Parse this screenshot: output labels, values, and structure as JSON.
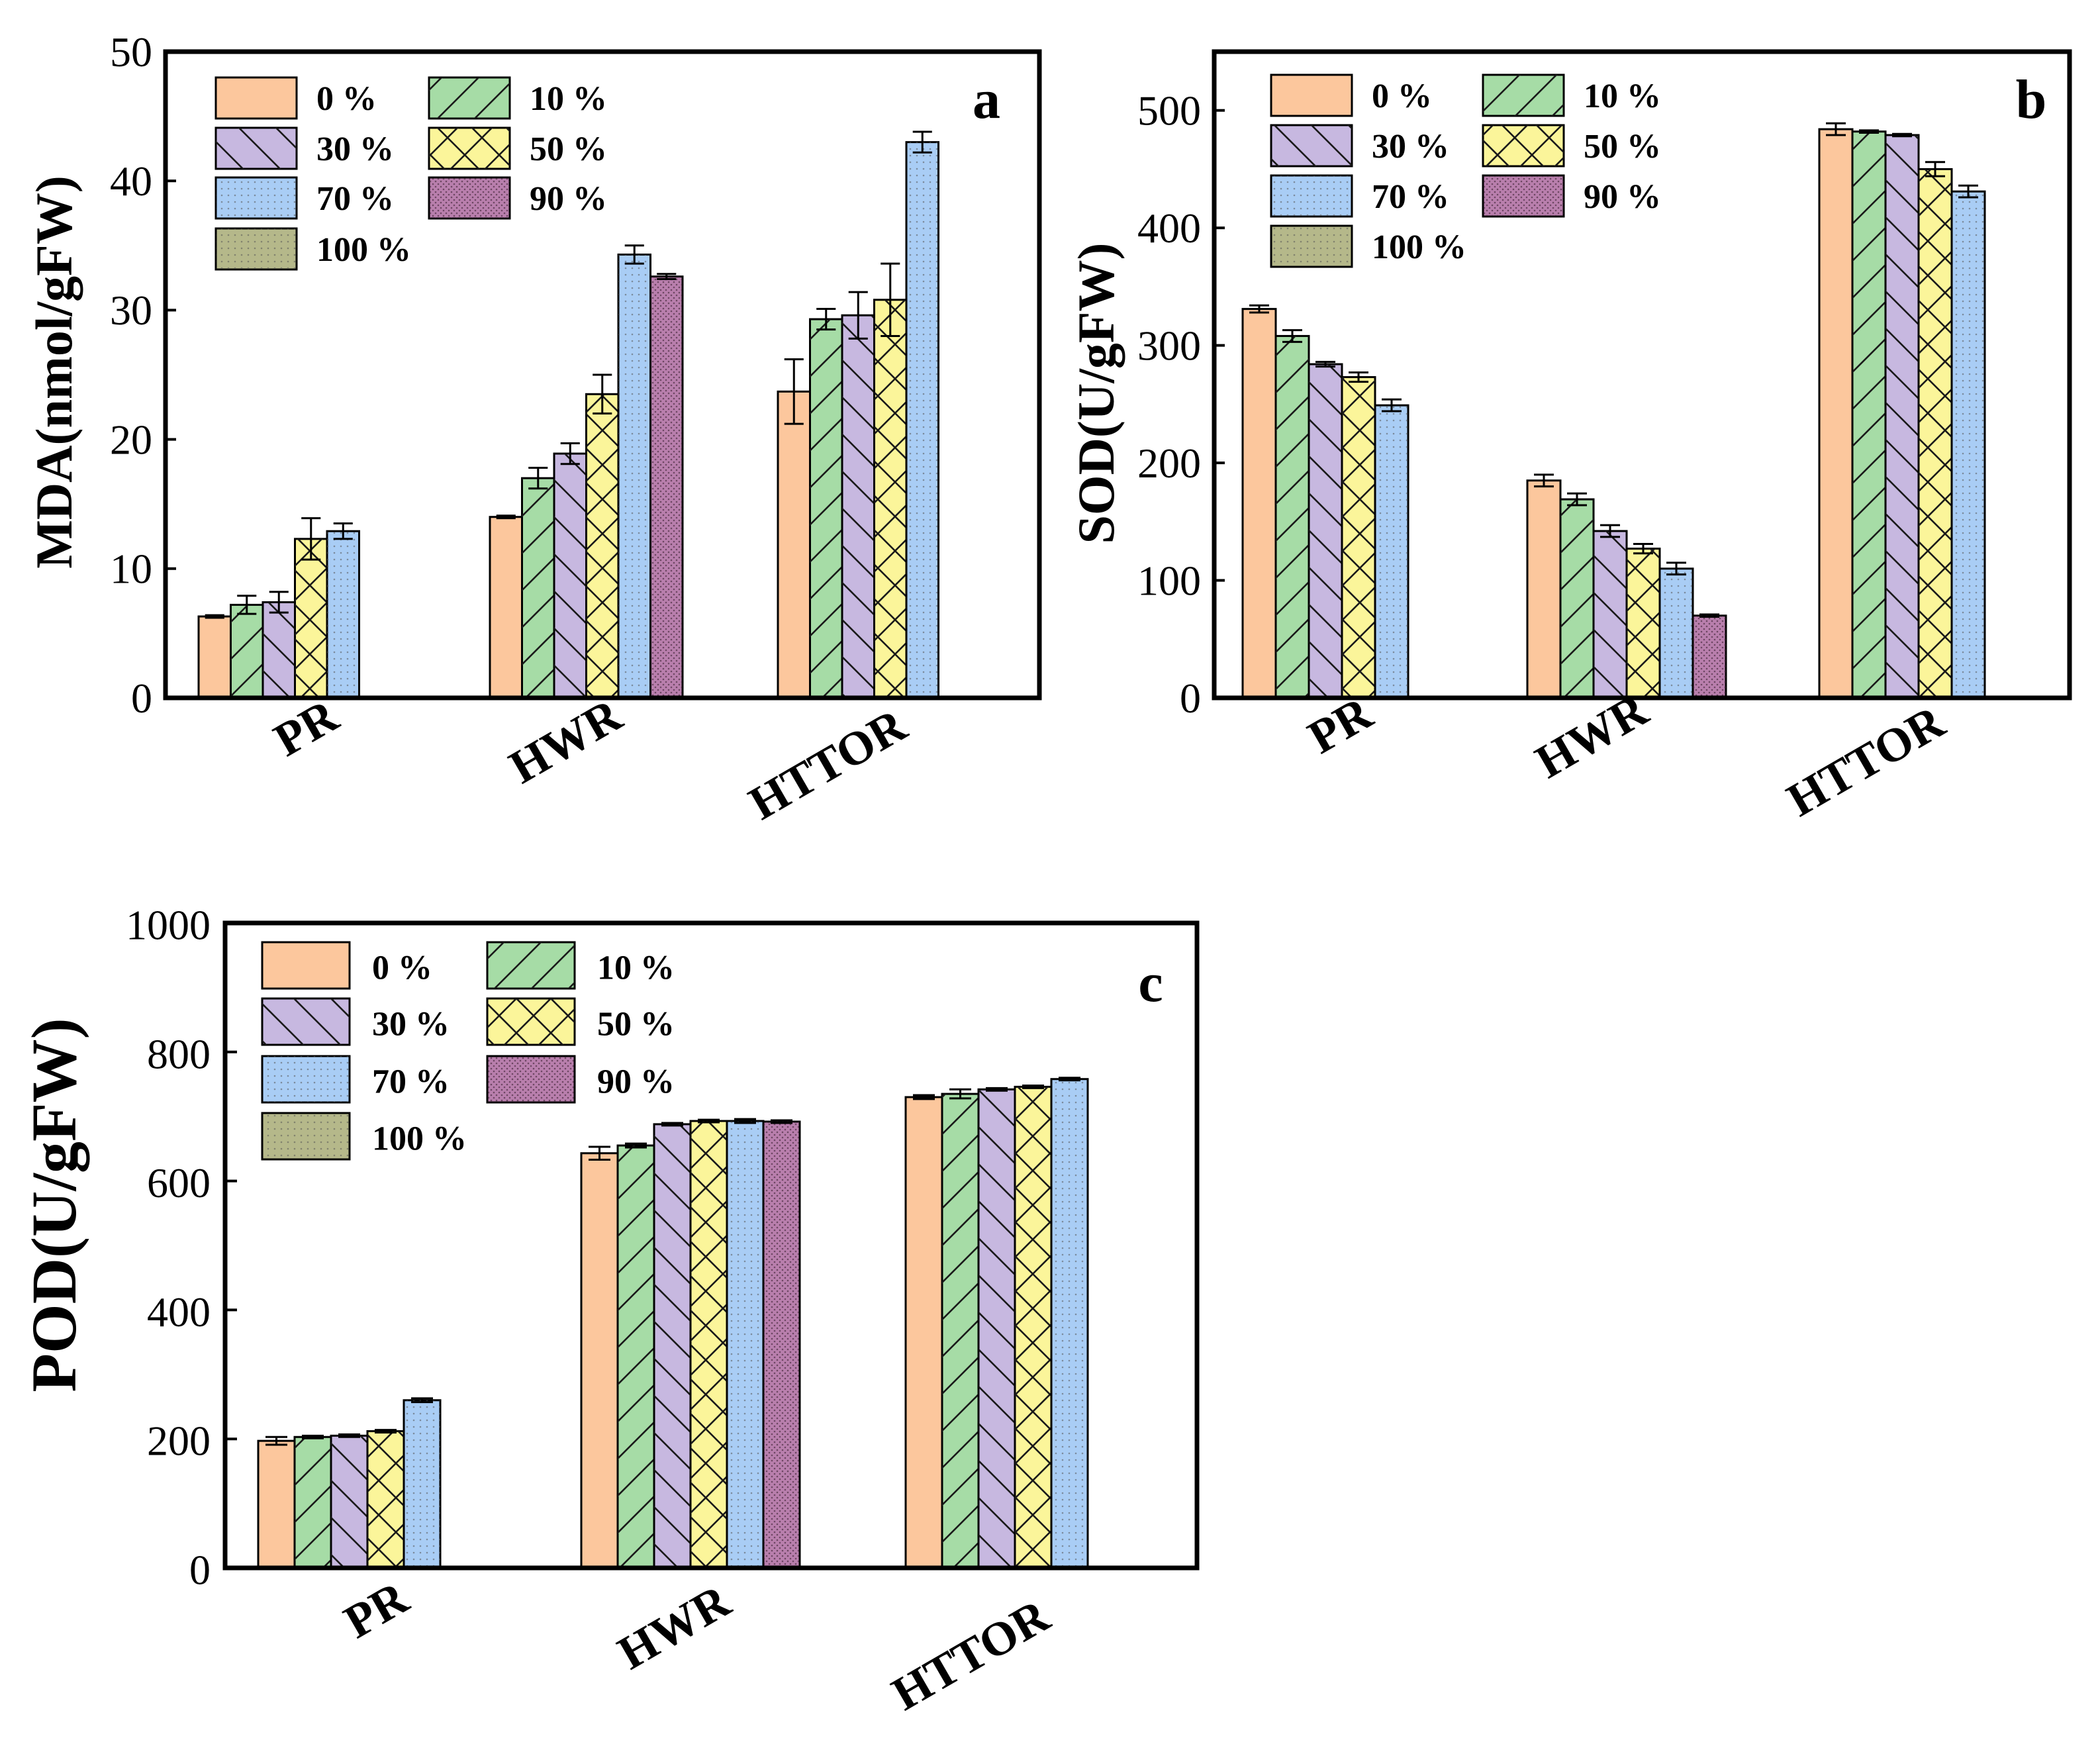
{
  "colors": {
    "0 %": "#fcc79d",
    "10 %": "#a6dca6",
    "30 %": "#c7b8e0",
    "50 %": "#fbf59a",
    "70 %": "#a9cdf5",
    "90 %": "#b97fad",
    "100 %": "#b5b88a"
  },
  "patterns": {
    "0 %": "none",
    "10 %": "forward-hatch",
    "30 %": "back-hatch",
    "50 %": "cross-hatch",
    "70 %": "dots",
    "90 %": "dense-dots",
    "100 %": "dots"
  },
  "chart_data": [
    {
      "panel": "a",
      "type": "bar",
      "ylabel": "MDA(nmol/gFW)",
      "ylim": [
        0,
        50
      ],
      "yticks": [
        "0",
        "10",
        "20",
        "30",
        "40",
        "50"
      ],
      "categories": [
        "PR",
        "HWR",
        "HTTOR"
      ],
      "legend": [
        "0 %",
        "10 %",
        "30 %",
        "50 %",
        "70 %",
        "90 %",
        "100 %"
      ],
      "series": [
        {
          "name": "0 %",
          "values": [
            6.3,
            14.0,
            23.7
          ],
          "errors": [
            0.1,
            0.1,
            2.5
          ]
        },
        {
          "name": "10 %",
          "values": [
            7.2,
            17.0,
            29.3
          ],
          "errors": [
            0.7,
            0.8,
            0.8
          ]
        },
        {
          "name": "30 %",
          "values": [
            7.4,
            18.9,
            29.6
          ],
          "errors": [
            0.8,
            0.8,
            1.8
          ]
        },
        {
          "name": "50 %",
          "values": [
            12.3,
            23.5,
            30.8
          ],
          "errors": [
            1.6,
            1.5,
            2.8
          ]
        },
        {
          "name": "70 %",
          "values": [
            12.9,
            34.3,
            43.0
          ],
          "errors": [
            0.6,
            0.7,
            0.8
          ]
        },
        {
          "name": "90 %",
          "values": [
            null,
            32.6,
            null
          ],
          "errors": [
            null,
            0.2,
            null
          ]
        },
        {
          "name": "100 %",
          "values": [
            null,
            null,
            null
          ],
          "errors": [
            null,
            null,
            null
          ]
        }
      ]
    },
    {
      "panel": "b",
      "type": "bar",
      "ylabel": "SOD(U/gFW)",
      "ylim": [
        0,
        550
      ],
      "yticks": [
        "0",
        "100",
        "200",
        "300",
        "400",
        "500"
      ],
      "categories": [
        "PR",
        "HWR",
        "HTTOR"
      ],
      "legend": [
        "0 %",
        "10 %",
        "30 %",
        "50 %",
        "70 %",
        "90 %",
        "100 %"
      ],
      "series": [
        {
          "name": "0 %",
          "values": [
            331,
            185,
            484
          ],
          "errors": [
            3,
            5,
            5
          ]
        },
        {
          "name": "10 %",
          "values": [
            308,
            169,
            482
          ],
          "errors": [
            5,
            5,
            1
          ]
        },
        {
          "name": "30 %",
          "values": [
            284,
            142,
            479
          ],
          "errors": [
            2,
            5,
            1
          ]
        },
        {
          "name": "50 %",
          "values": [
            273,
            127,
            450
          ],
          "errors": [
            4,
            4,
            6
          ]
        },
        {
          "name": "70 %",
          "values": [
            249,
            110,
            431
          ],
          "errors": [
            5,
            5,
            5
          ]
        },
        {
          "name": "90 %",
          "values": [
            null,
            70,
            null
          ],
          "errors": [
            null,
            1,
            null
          ]
        },
        {
          "name": "100 %",
          "values": [
            null,
            null,
            null
          ],
          "errors": [
            null,
            null,
            null
          ]
        }
      ]
    },
    {
      "panel": "c",
      "type": "bar",
      "ylabel": "POD(U/gFW)",
      "ylim": [
        0,
        1000
      ],
      "yticks": [
        "0",
        "200",
        "400",
        "600",
        "800",
        "1000"
      ],
      "categories": [
        "PR",
        "HWR",
        "HTTOR"
      ],
      "legend": [
        "0 %",
        "10 %",
        "30 %",
        "50 %",
        "70 %",
        "90 %",
        "100 %"
      ],
      "series": [
        {
          "name": "0 %",
          "values": [
            197,
            643,
            730
          ],
          "errors": [
            6,
            10,
            3
          ]
        },
        {
          "name": "10 %",
          "values": [
            203,
            655,
            735
          ],
          "errors": [
            2,
            3,
            7
          ]
        },
        {
          "name": "30 %",
          "values": [
            205,
            688,
            742
          ],
          "errors": [
            2,
            2,
            2
          ]
        },
        {
          "name": "50 %",
          "values": [
            212,
            693,
            746
          ],
          "errors": [
            2,
            2,
            2
          ]
        },
        {
          "name": "70 %",
          "values": [
            260,
            693,
            758
          ],
          "errors": [
            3,
            3,
            2
          ]
        },
        {
          "name": "90 %",
          "values": [
            null,
            692,
            null
          ],
          "errors": [
            null,
            2,
            null
          ]
        },
        {
          "name": "100 %",
          "values": [
            null,
            null,
            null
          ],
          "errors": [
            null,
            null,
            null
          ]
        }
      ]
    }
  ]
}
